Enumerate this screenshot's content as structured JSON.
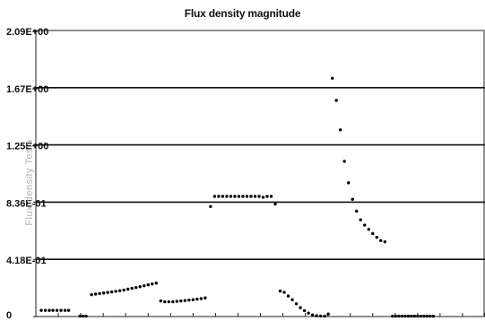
{
  "chart_data": {
    "type": "scatter",
    "title": "Flux density magnitude",
    "ylabel": "Flux density Tesla",
    "xlabel": "",
    "ylim": [
      0,
      2.09
    ],
    "xlim": [
      0,
      100
    ],
    "grid": true,
    "y_ticks": [
      {
        "value": 2.09,
        "label": "2.09E+00"
      },
      {
        "value": 1.672,
        "label": "1.67E+00"
      },
      {
        "value": 1.254,
        "label": "1.25E+00"
      },
      {
        "value": 0.836,
        "label": "8.36E-01"
      },
      {
        "value": 0.418,
        "label": "4.18E-01"
      },
      {
        "value": 0,
        "label": "0"
      }
    ],
    "x_minor_tick_count": 20,
    "series": [
      {
        "color": "#000000",
        "points": [
          [
            1.2,
            0.045
          ],
          [
            2.1,
            0.045
          ],
          [
            3.0,
            0.045
          ],
          [
            3.8,
            0.045
          ],
          [
            4.7,
            0.045
          ],
          [
            5.6,
            0.045
          ],
          [
            6.5,
            0.045
          ],
          [
            7.3,
            0.045
          ],
          [
            12.4,
            0.16
          ],
          [
            13.3,
            0.164
          ],
          [
            14.2,
            0.168
          ],
          [
            15.1,
            0.172
          ],
          [
            16.0,
            0.176
          ],
          [
            16.9,
            0.18
          ],
          [
            17.8,
            0.184
          ],
          [
            18.7,
            0.189
          ],
          [
            19.6,
            0.194
          ],
          [
            20.5,
            0.2
          ],
          [
            21.4,
            0.206
          ],
          [
            22.3,
            0.212
          ],
          [
            23.2,
            0.218
          ],
          [
            24.1,
            0.225
          ],
          [
            25.0,
            0.232
          ],
          [
            25.9,
            0.238
          ],
          [
            26.8,
            0.244
          ],
          [
            27.8,
            0.114
          ],
          [
            28.7,
            0.108
          ],
          [
            29.6,
            0.108
          ],
          [
            30.5,
            0.108
          ],
          [
            31.4,
            0.111
          ],
          [
            32.3,
            0.114
          ],
          [
            33.2,
            0.117
          ],
          [
            34.1,
            0.12
          ],
          [
            35.0,
            0.123
          ],
          [
            35.9,
            0.127
          ],
          [
            36.8,
            0.131
          ],
          [
            37.7,
            0.136
          ],
          [
            38.9,
            0.804
          ],
          [
            39.8,
            0.878
          ],
          [
            40.7,
            0.878
          ],
          [
            41.6,
            0.878
          ],
          [
            42.5,
            0.878
          ],
          [
            43.4,
            0.878
          ],
          [
            44.3,
            0.878
          ],
          [
            45.2,
            0.878
          ],
          [
            46.1,
            0.878
          ],
          [
            47.0,
            0.878
          ],
          [
            47.9,
            0.878
          ],
          [
            48.8,
            0.878
          ],
          [
            49.7,
            0.878
          ],
          [
            50.6,
            0.871
          ],
          [
            51.5,
            0.878
          ],
          [
            52.4,
            0.878
          ],
          [
            53.3,
            0.822
          ],
          [
            54.4,
            0.186
          ],
          [
            55.3,
            0.177
          ],
          [
            56.2,
            0.15
          ],
          [
            57.1,
            0.123
          ],
          [
            58.0,
            0.093
          ],
          [
            58.9,
            0.065
          ],
          [
            59.8,
            0.043
          ],
          [
            60.7,
            0.025
          ],
          [
            61.6,
            0.012
          ],
          [
            62.5,
            0.006
          ],
          [
            63.4,
            0.004
          ],
          [
            64.3,
            0.003
          ],
          [
            65.1,
            0.018
          ],
          [
            66.0,
            1.741
          ],
          [
            66.9,
            1.579
          ],
          [
            67.8,
            1.364
          ],
          [
            68.7,
            1.134
          ],
          [
            69.6,
            0.977
          ],
          [
            70.5,
            0.857
          ],
          [
            71.4,
            0.77
          ],
          [
            72.3,
            0.707
          ],
          [
            73.2,
            0.668
          ],
          [
            74.1,
            0.637
          ],
          [
            75.0,
            0.606
          ],
          [
            75.9,
            0.579
          ],
          [
            76.8,
            0.555
          ],
          [
            77.7,
            0.546
          ],
          [
            79.4,
            0.003
          ],
          [
            80.1,
            0.003
          ],
          [
            80.8,
            0.003
          ],
          [
            81.5,
            0.003
          ],
          [
            82.2,
            0.003
          ],
          [
            82.9,
            0.003
          ],
          [
            83.6,
            0.003
          ],
          [
            84.3,
            0.003
          ],
          [
            85.0,
            0.003
          ],
          [
            85.7,
            0.003
          ],
          [
            86.4,
            0.003
          ],
          [
            87.1,
            0.003
          ],
          [
            87.8,
            0.003
          ],
          [
            88.5,
            0.003
          ],
          [
            9.8,
            0.003
          ],
          [
            10.5,
            0.003
          ],
          [
            11.2,
            0.003
          ]
        ]
      }
    ]
  }
}
